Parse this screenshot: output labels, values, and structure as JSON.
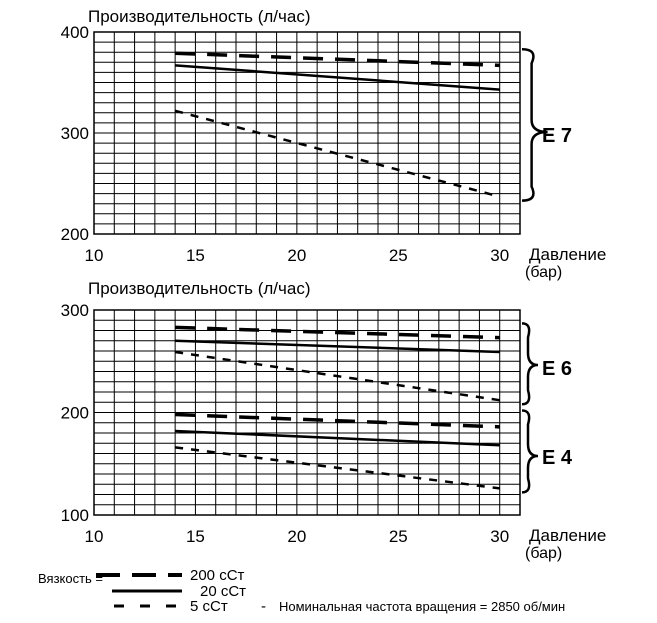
{
  "chart_data": [
    {
      "type": "line",
      "title": "Производительность  (л/час)",
      "xlabel": "Давление",
      "xlabel_unit": "(бар)",
      "xlim": [
        10,
        31
      ],
      "ylim": [
        200,
        400
      ],
      "x_ticks": [
        "10",
        "15",
        "20",
        "25",
        "30"
      ],
      "y_ticks": [
        "200",
        "300",
        "400"
      ],
      "grid": true,
      "groups": [
        {
          "label": "E 7",
          "series": [
            {
              "viscosity": "200 cSt",
              "style": "long-dash",
              "x": [
                14,
                30
              ],
              "y": [
                379,
                367
              ]
            },
            {
              "viscosity": "20 cSt",
              "style": "solid",
              "x": [
                14,
                30
              ],
              "y": [
                367,
                343
              ]
            },
            {
              "viscosity": "5 cSt",
              "style": "short-dash",
              "x": [
                14,
                30
              ],
              "y": [
                322,
                237
              ]
            }
          ]
        }
      ]
    },
    {
      "type": "line",
      "title": "Производительность  (л/час)",
      "xlabel": "Давление",
      "xlabel_unit": "(бар)",
      "xlim": [
        10,
        31
      ],
      "ylim": [
        100,
        300
      ],
      "x_ticks": [
        "10",
        "15",
        "20",
        "25",
        "30"
      ],
      "y_ticks": [
        "100",
        "200",
        "300"
      ],
      "grid": true,
      "groups": [
        {
          "label": "E 6",
          "series": [
            {
              "viscosity": "200 cSt",
              "style": "long-dash",
              "x": [
                14,
                30
              ],
              "y": [
                283,
                273
              ]
            },
            {
              "viscosity": "20 cSt",
              "style": "solid",
              "x": [
                14,
                30
              ],
              "y": [
                270,
                259
              ]
            },
            {
              "viscosity": "5 cSt",
              "style": "short-dash",
              "x": [
                14,
                30
              ],
              "y": [
                259,
                212
              ]
            }
          ]
        },
        {
          "label": "E 4",
          "series": [
            {
              "viscosity": "200 cSt",
              "style": "long-dash",
              "x": [
                14,
                30
              ],
              "y": [
                198,
                186
              ]
            },
            {
              "viscosity": "20 cSt",
              "style": "solid",
              "x": [
                14,
                30
              ],
              "y": [
                182,
                168
              ]
            },
            {
              "viscosity": "5 cSt",
              "style": "short-dash",
              "x": [
                14,
                30
              ],
              "y": [
                166,
                126
              ]
            }
          ]
        }
      ]
    }
  ],
  "legend": {
    "prefix": "Вязкость =",
    "items": [
      {
        "style": "long-dash",
        "label": "200 сСт"
      },
      {
        "style": "solid",
        "label": "20 сСт"
      },
      {
        "style": "short-dash",
        "label": "5 сСт"
      }
    ],
    "sep": "-",
    "note": "Номинальная частота вращения = 2850 об/мин"
  },
  "colors": {
    "line": "#000000",
    "grid": "#000000",
    "background": "#ffffff"
  }
}
